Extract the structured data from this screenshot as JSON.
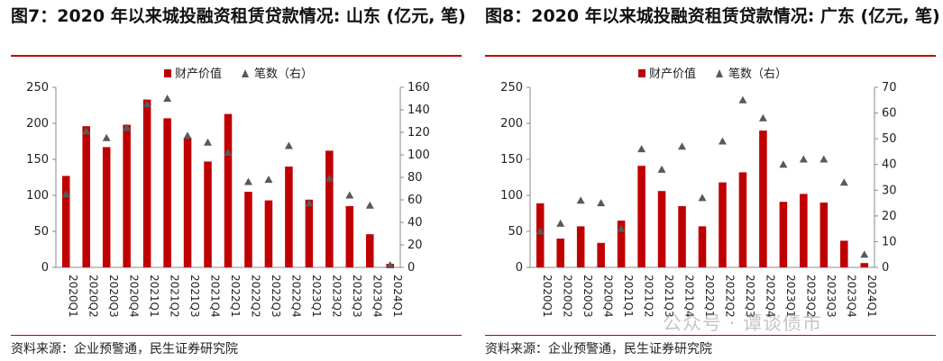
{
  "panels": [
    {
      "title": "图7：2020 年以来城投融资租赁贷款情况: 山东 (亿元, 笔)",
      "source": "资料来源：企业预警通，民生证券研究院",
      "legend": {
        "bar": "财产价值",
        "marker": "笔数（右）"
      },
      "chart_data": {
        "type": "bar",
        "categories": [
          "2020Q1",
          "2020Q2",
          "2020Q3",
          "2020Q4",
          "2021Q1",
          "2021Q2",
          "2021Q3",
          "2021Q4",
          "2022Q1",
          "2022Q2",
          "2022Q3",
          "2022Q4",
          "2023Q1",
          "2023Q2",
          "2023Q3",
          "2023Q4",
          "2024Q1"
        ],
        "series": [
          {
            "name": "财产价值",
            "type": "bar",
            "axis": "left",
            "values": [
              127,
              196,
              167,
              198,
              233,
              207,
              180,
              147,
              213,
              105,
              93,
              140,
              94,
              162,
              85,
              46,
              5
            ]
          },
          {
            "name": "笔数（右）",
            "type": "scatter",
            "axis": "right",
            "values": [
              65,
              121,
              115,
              124,
              145,
              150,
              117,
              111,
              102,
              76,
              78,
              108,
              57,
              79,
              64,
              55,
              2
            ]
          }
        ],
        "ylim": [
          0,
          250
        ],
        "yticks": [
          0,
          50,
          100,
          150,
          200,
          250
        ],
        "y2lim": [
          0,
          160
        ],
        "y2ticks": [
          0,
          20,
          40,
          60,
          80,
          100,
          120,
          140,
          160
        ],
        "legend_position": "top-center",
        "grid": false
      }
    },
    {
      "title": "图8：2020 年以来城投融资租赁贷款情况: 广东 (亿元, 笔)",
      "source": "资料来源：企业预警通，民生证券研究院",
      "legend": {
        "bar": "财产价值",
        "marker": "笔数（右）"
      },
      "chart_data": {
        "type": "bar",
        "categories": [
          "2020Q1",
          "2020Q2",
          "2020Q3",
          "2020Q4",
          "2021Q1",
          "2021Q2",
          "2021Q3",
          "2021Q4",
          "2022Q1",
          "2022Q2",
          "2022Q3",
          "2022Q4",
          "2023Q1",
          "2023Q2",
          "2023Q3",
          "2023Q4",
          "2024Q1"
        ],
        "series": [
          {
            "name": "财产价值",
            "type": "bar",
            "axis": "left",
            "values": [
              89,
              40,
              57,
              34,
              65,
              141,
              106,
              85,
              57,
              118,
              132,
              190,
              91,
              102,
              90,
              37,
              6
            ]
          },
          {
            "name": "笔数（右）",
            "type": "scatter",
            "axis": "right",
            "values": [
              14,
              17,
              26,
              25,
              15,
              46,
              38,
              47,
              27,
              49,
              65,
              58,
              40,
              42,
              42,
              33,
              5
            ]
          }
        ],
        "ylim": [
          0,
          250
        ],
        "yticks": [
          0,
          50,
          100,
          150,
          200,
          250
        ],
        "y2lim": [
          0,
          70
        ],
        "y2ticks": [
          0,
          10,
          20,
          30,
          40,
          50,
          60,
          70
        ],
        "legend_position": "top-center",
        "grid": false
      }
    }
  ],
  "watermark": "公众号 · 谭谈债市",
  "colors": {
    "bar": "#c00000",
    "marker": "#595959",
    "accent": "#c00000"
  }
}
